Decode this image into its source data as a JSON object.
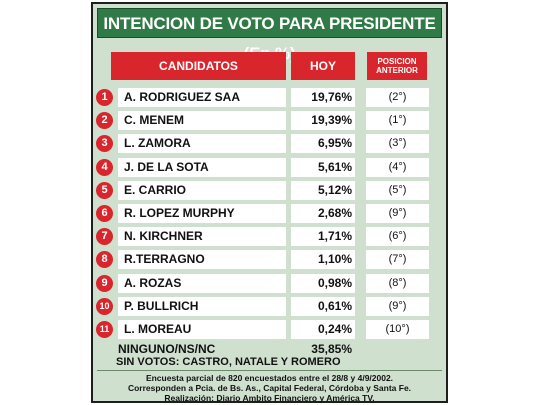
{
  "title": "INTENCION DE VOTO PARA PRESIDENTE (En %)",
  "colors": {
    "title_bg": "#2f7a46",
    "header_bg": "#d9262c",
    "card_bg": "#cfe0cf",
    "number_badge": "#d9262c"
  },
  "chart_data": {
    "type": "table",
    "title": "INTENCION DE VOTO PARA PRESIDENTE (En %)",
    "columns": [
      "CANDIDATOS",
      "HOY",
      "POSICION ANTERIOR"
    ],
    "rows": [
      {
        "num": "1",
        "name": "A. RODRIGUEZ SAA",
        "hoy": "19,76%",
        "prev": "(2°)",
        "value": 19.76
      },
      {
        "num": "2",
        "name": "C. MENEM",
        "hoy": "19,39%",
        "prev": "(1°)",
        "value": 19.39
      },
      {
        "num": "3",
        "name": "L. ZAMORA",
        "hoy": "6,95%",
        "prev": "(3°)",
        "value": 6.95
      },
      {
        "num": "4",
        "name": "J. DE LA SOTA",
        "hoy": "5,61%",
        "prev": "(4°)",
        "value": 5.61
      },
      {
        "num": "5",
        "name": "E. CARRIO",
        "hoy": "5,12%",
        "prev": "(5°)",
        "value": 5.12
      },
      {
        "num": "6",
        "name": "R. LOPEZ MURPHY",
        "hoy": "2,68%",
        "prev": "(9°)",
        "value": 2.68
      },
      {
        "num": "7",
        "name": "N. KIRCHNER",
        "hoy": "1,71%",
        "prev": "(6°)",
        "value": 1.71
      },
      {
        "num": "8",
        "name": "R.TERRAGNO",
        "hoy": "1,10%",
        "prev": "(7°)",
        "value": 1.1
      },
      {
        "num": "9",
        "name": "A. ROZAS",
        "hoy": "0,98%",
        "prev": "(8°)",
        "value": 0.98
      },
      {
        "num": "10",
        "name": "P. BULLRICH",
        "hoy": "0,61%",
        "prev": "(9°)",
        "value": 0.61
      },
      {
        "num": "11",
        "name": "L. MOREAU",
        "hoy": "0,24%",
        "prev": "(10°)",
        "value": 0.24
      }
    ],
    "ninguno": {
      "label": "NINGUNO/NS/NC",
      "hoy": "35,85%",
      "value": 35.85
    },
    "sin_votos": "SIN VOTOS: CASTRO, NATALE Y ROMERO"
  },
  "headers": {
    "candidatos": "CANDIDATOS",
    "hoy": "HOY",
    "prev_line1": "POSICION",
    "prev_line2": "ANTERIOR"
  },
  "footnotes": [
    "Encuesta parcial de 820 encuestados entre el 28/8 y 4/9/2002.",
    "Corresponden a Pcia. de Bs. As., Capital Federal, Córdoba y Santa Fe.",
    "Realización: Diario Ambito Financiero y América TV."
  ]
}
